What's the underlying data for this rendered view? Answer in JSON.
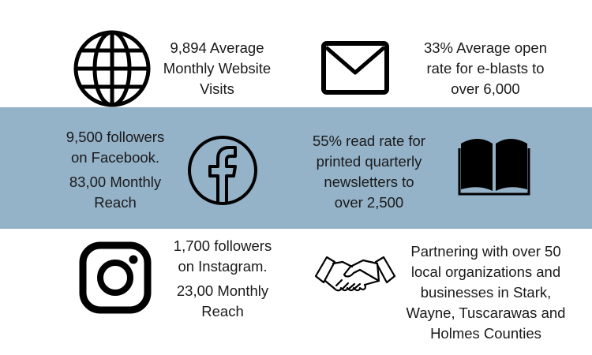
{
  "stats": {
    "website": {
      "icon": "globe-icon",
      "lines": [
        "9,894 Average",
        "Monthly Website",
        "Visits"
      ]
    },
    "email": {
      "icon": "envelope-icon",
      "lines": [
        "33% Average open",
        "rate for e-blasts to",
        "over 6,000"
      ]
    },
    "facebook": {
      "icon": "facebook-icon",
      "lines": [
        "9,500 followers",
        "on Facebook."
      ],
      "reach_lines": [
        "83,00 Monthly",
        "Reach"
      ]
    },
    "newsletter": {
      "icon": "open-book-icon",
      "lines": [
        "55% read rate for",
        "printed quarterly",
        "newsletters to",
        "over 2,500"
      ]
    },
    "instagram": {
      "icon": "instagram-icon",
      "lines": [
        "1,700 followers",
        "on Instagram."
      ],
      "reach_lines": [
        "23,00 Monthly",
        "Reach"
      ]
    },
    "partners": {
      "icon": "handshake-icon",
      "lines": [
        "Partnering with over 50",
        "local organizations and",
        "businesses in Stark,",
        "Wayne, Tuscarawas and",
        "Holmes Counties"
      ]
    }
  },
  "colors": {
    "band": "#94b2c8",
    "text": "#1a1a1a",
    "icon": "#000000"
  }
}
